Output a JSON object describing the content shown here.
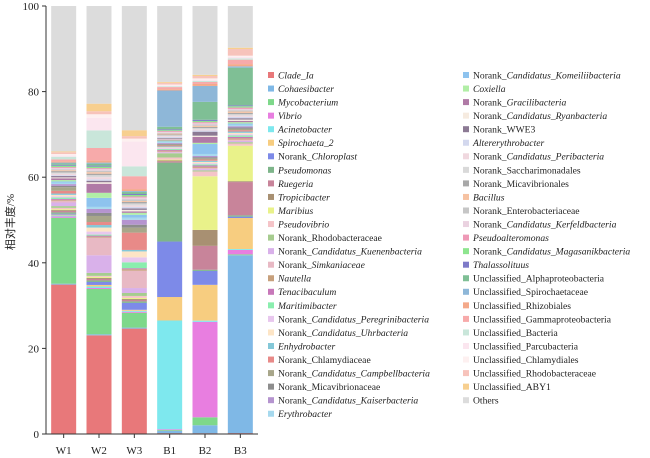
{
  "chart_data": {
    "type": "bar",
    "stacked": true,
    "ylabel": "相对丰度/%",
    "xlabel": "",
    "ylim": [
      0,
      100
    ],
    "yticks": [
      0,
      20,
      40,
      60,
      80,
      100
    ],
    "categories": [
      "W1",
      "W2",
      "W3",
      "B1",
      "B2",
      "B3"
    ],
    "legend_position": "right",
    "series": [
      {
        "name": "Clade_Ia",
        "display": [
          {
            "t": "Clade_Ia",
            "i": true
          }
        ],
        "color": "#e8787a",
        "values": [
          33.3,
          19.6,
          21.3,
          0.2,
          0.2,
          0.2
        ]
      },
      {
        "name": "Cohaesibacter",
        "display": [
          {
            "t": "Cohaesibacter",
            "i": true
          }
        ],
        "color": "#7fb8e6",
        "values": [
          0.2,
          0.2,
          0.2,
          0.5,
          2.0,
          40.1
        ]
      },
      {
        "name": "Mycobacterium",
        "display": [
          {
            "t": "Mycobacterium",
            "i": true
          }
        ],
        "color": "#7ed88a",
        "values": [
          14.7,
          9.0,
          3.0,
          0.2,
          2.0,
          0.2
        ]
      },
      {
        "name": "Vibrio",
        "display": [
          {
            "t": "Vibrio",
            "i": true
          }
        ],
        "color": "#e87ee0",
        "values": [
          0.3,
          0.2,
          0.2,
          0.2,
          24.0,
          1.0
        ]
      },
      {
        "name": "Acinetobacter",
        "display": [
          {
            "t": "Acinetobacter",
            "i": true
          }
        ],
        "color": "#7ee8ee",
        "values": [
          0.2,
          0.3,
          0.2,
          25.5,
          0.3,
          0.2
        ]
      },
      {
        "name": "Spirochaeta_2",
        "display": [
          {
            "t": "Spirochaeta_2",
            "i": true
          }
        ],
        "color": "#f7cd80",
        "values": [
          0.2,
          0.3,
          0.2,
          5.5,
          9.0,
          7.0
        ]
      },
      {
        "name": "Norank_Chloroplast",
        "display": [
          {
            "t": "Norank_",
            "i": false
          },
          {
            "t": "Chloroplast",
            "i": true
          }
        ],
        "color": "#7d8ae8",
        "values": [
          0.2,
          0.6,
          1.4,
          13.0,
          3.5,
          0.3
        ]
      },
      {
        "name": "Pseudomonas",
        "display": [
          {
            "t": "Pseudomonas",
            "i": true
          }
        ],
        "color": "#7eb58a",
        "values": [
          0.3,
          0.3,
          0.3,
          18.5,
          0.3,
          0.3
        ]
      },
      {
        "name": "Ruegeria",
        "display": [
          {
            "t": "Ruegeria",
            "i": true
          }
        ],
        "color": "#c8849a",
        "values": [
          0.3,
          0.3,
          0.3,
          0.3,
          6.0,
          7.5
        ]
      },
      {
        "name": "Tropicibacter",
        "display": [
          {
            "t": "Tropicibacter",
            "i": true
          }
        ],
        "color": "#a89072",
        "values": [
          0.2,
          0.2,
          0.2,
          0.2,
          4.0,
          0.2
        ]
      },
      {
        "name": "Maribius",
        "display": [
          {
            "t": "Maribius",
            "i": true
          }
        ],
        "color": "#e9f28a",
        "values": [
          0.2,
          0.2,
          0.2,
          0.2,
          13.5,
          8.0
        ]
      },
      {
        "name": "Pseudovibrio",
        "display": [
          {
            "t": "Pseudovibrio",
            "i": true
          }
        ],
        "color": "#f5c4c8",
        "values": [
          0.3,
          0.2,
          0.4,
          0.5,
          1.2,
          0.5
        ]
      },
      {
        "name": "Norank_Rhodobacteraceae",
        "display": [
          {
            "t": "Norank_Rhodobacteraceae",
            "i": false
          }
        ],
        "color": "#a6cc8f",
        "values": [
          0.4,
          0.6,
          0.6,
          1.0,
          0.3,
          0.3
        ]
      },
      {
        "name": "Norank_Candidatus_Kuenenbacteria",
        "display": [
          {
            "t": "Norank_",
            "i": false
          },
          {
            "t": "Candidatus_Kuenenbacteria",
            "i": true
          }
        ],
        "color": "#d9b1ea",
        "values": [
          0.8,
          3.5,
          1.0,
          0.2,
          0.3,
          0.3
        ]
      },
      {
        "name": "Norank_Simkaniaceae",
        "display": [
          {
            "t": "Norank_",
            "i": false
          },
          {
            "t": "Simkaniaceae",
            "i": true
          }
        ],
        "color": "#e8b9c4",
        "values": [
          0.4,
          3.5,
          3.5,
          0.2,
          0.3,
          0.3
        ]
      },
      {
        "name": "Nautella",
        "display": [
          {
            "t": "Nautella",
            "i": true
          }
        ],
        "color": "#c7a07c",
        "values": [
          0.2,
          0.2,
          0.3,
          0.2,
          0.3,
          0.3
        ]
      },
      {
        "name": "Tenacibaculum",
        "display": [
          {
            "t": "Tenacibaculum",
            "i": true
          }
        ],
        "color": "#c778b9",
        "values": [
          0.2,
          0.2,
          0.2,
          0.2,
          0.3,
          0.3
        ]
      },
      {
        "name": "Maritimibacter",
        "display": [
          {
            "t": "Maritimibacter",
            "i": true
          }
        ],
        "color": "#8aeeae",
        "values": [
          0.3,
          0.2,
          1.2,
          0.2,
          0.3,
          0.3
        ]
      },
      {
        "name": "Norank_Candidatus_Peregrinibacteria",
        "display": [
          {
            "t": "Norank_",
            "i": false
          },
          {
            "t": "Candidatus_Peregrinibacteria",
            "i": true
          }
        ],
        "color": "#e8c7ee",
        "values": [
          0.3,
          0.6,
          1.0,
          0.2,
          0.3,
          0.3
        ]
      },
      {
        "name": "Norank_Candidatus_Uhrbacteria",
        "display": [
          {
            "t": "Norank_",
            "i": false
          },
          {
            "t": "Candidatus_Uhrbacteria",
            "i": true
          }
        ],
        "color": "#fde5c6",
        "values": [
          0.3,
          0.8,
          1.2,
          0.2,
          0.3,
          0.3
        ]
      },
      {
        "name": "Enhydrobacter",
        "display": [
          {
            "t": "Enhydrobacter",
            "i": true
          }
        ],
        "color": "#84c8d8",
        "values": [
          0.3,
          0.5,
          0.3,
          0.2,
          0.3,
          0.3
        ]
      },
      {
        "name": "Norank_Chlamydiaceae",
        "display": [
          {
            "t": "Norank_Chlamydiaceae",
            "i": false
          }
        ],
        "color": "#e88a88",
        "values": [
          0.6,
          0.6,
          3.5,
          0.2,
          0.3,
          0.3
        ]
      },
      {
        "name": "Norank_Candidatus_Campbellbacteria",
        "display": [
          {
            "t": "Norank_",
            "i": false
          },
          {
            "t": "Candidatus_Campbellbacteria",
            "i": true
          }
        ],
        "color": "#a8a68a",
        "values": [
          0.8,
          1.2,
          1.0,
          0.2,
          0.3,
          0.3
        ]
      },
      {
        "name": "Norank_Micavibrionaceae",
        "display": [
          {
            "t": "Norank_Micavibrionaceae",
            "i": false
          }
        ],
        "color": "#8d8d8d",
        "values": [
          0.3,
          0.6,
          0.6,
          0.2,
          0.3,
          0.3
        ]
      },
      {
        "name": "Norank_Candidatus_Kaiserbacteria",
        "display": [
          {
            "t": "Norank_",
            "i": false
          },
          {
            "t": "Candidatus_Kaiserbacteria",
            "i": true
          }
        ],
        "color": "#b594cf",
        "values": [
          0.4,
          0.8,
          1.0,
          0.2,
          0.3,
          0.3
        ]
      },
      {
        "name": "Erythrobacter",
        "display": [
          {
            "t": "Erythrobacter",
            "i": true
          }
        ],
        "color": "#a6d9ee",
        "values": [
          0.3,
          0.4,
          0.4,
          0.2,
          0.5,
          0.3
        ]
      },
      {
        "name": "Norank_Candidatus_Komeiliibacteria",
        "display": [
          {
            "t": "Norank_",
            "i": false
          },
          {
            "t": "Candidatus_Komeiliibacteria",
            "i": true
          }
        ],
        "color": "#8ec3ee",
        "values": [
          0.3,
          1.8,
          0.6,
          0.2,
          2.5,
          0.3
        ]
      },
      {
        "name": "Coxiella",
        "display": [
          {
            "t": "Coxiella",
            "i": true
          }
        ],
        "color": "#b1eea6",
        "values": [
          0.3,
          1.0,
          0.4,
          0.2,
          0.3,
          0.3
        ]
      },
      {
        "name": "Norank_Gracilibacteria",
        "display": [
          {
            "t": "Norank_",
            "i": false
          },
          {
            "t": "Gracilibacteria",
            "i": true
          }
        ],
        "color": "#b07aa6",
        "values": [
          0.4,
          1.8,
          0.3,
          0.2,
          1.5,
          0.3
        ]
      },
      {
        "name": "Norank_Candidatus_Ryanbacteria",
        "display": [
          {
            "t": "Norank_",
            "i": false
          },
          {
            "t": "Candidatus_Ryanbacteria",
            "i": true
          }
        ],
        "color": "#f6ebe0",
        "values": [
          0.2,
          0.3,
          0.3,
          0.2,
          0.3,
          0.3
        ]
      },
      {
        "name": "Norank_WWE3",
        "display": [
          {
            "t": "Norank_WWE3",
            "i": false
          }
        ],
        "color": "#8c7a94",
        "values": [
          0.3,
          0.3,
          0.3,
          0.2,
          1.0,
          0.3
        ]
      },
      {
        "name": "Altererythrobacter",
        "display": [
          {
            "t": "Altererythrobacter",
            "i": true
          }
        ],
        "color": "#d3d8ee",
        "values": [
          0.2,
          0.3,
          0.3,
          0.2,
          0.3,
          0.3
        ]
      },
      {
        "name": "Norank_Candidatus_Peribacteria",
        "display": [
          {
            "t": "Norank_",
            "i": false
          },
          {
            "t": "Candidatus_Peribacteria",
            "i": true
          }
        ],
        "color": "#f0d8df",
        "values": [
          0.3,
          0.4,
          0.3,
          0.2,
          0.3,
          0.3
        ]
      },
      {
        "name": "Norank_Saccharimonadales",
        "display": [
          {
            "t": "Norank_Saccharimonadales",
            "i": false
          }
        ],
        "color": "#d9d9d9",
        "values": [
          0.3,
          0.4,
          0.4,
          0.2,
          0.3,
          0.3
        ]
      },
      {
        "name": "Norank_Micavibrionales",
        "display": [
          {
            "t": "Norank_Micavibrionales",
            "i": false
          }
        ],
        "color": "#a8a8a8",
        "values": [
          0.3,
          0.3,
          0.3,
          0.2,
          0.3,
          0.3
        ]
      },
      {
        "name": "Bacillus",
        "display": [
          {
            "t": "Bacillus",
            "i": true
          }
        ],
        "color": "#f6c2a2",
        "values": [
          0.2,
          0.3,
          0.2,
          0.2,
          0.3,
          0.3
        ]
      },
      {
        "name": "Norank_Enterobacteriaceae",
        "display": [
          {
            "t": "Norank_Enterobacteriaceae",
            "i": false
          }
        ],
        "color": "#c6c6c6",
        "values": [
          0.2,
          0.3,
          0.3,
          0.2,
          0.3,
          0.3
        ]
      },
      {
        "name": "Norank_Candidatus_Kerfeldbacteria",
        "display": [
          {
            "t": "Norank_",
            "i": false
          },
          {
            "t": "Candidatus_Kerfeldbacteria",
            "i": true
          }
        ],
        "color": "#ead2e0",
        "values": [
          0.3,
          0.3,
          0.4,
          0.2,
          0.3,
          0.3
        ]
      },
      {
        "name": "Pseudoalteromonas",
        "display": [
          {
            "t": "Pseudoalteromonas",
            "i": true
          }
        ],
        "color": "#ee99b6",
        "values": [
          0.2,
          0.2,
          0.2,
          0.2,
          0.3,
          0.3
        ]
      },
      {
        "name": "Norank_Candidatus_Magasanikbacteria",
        "display": [
          {
            "t": "Norank_",
            "i": false
          },
          {
            "t": "Candidatus_Magasanikbacteria",
            "i": true
          }
        ],
        "color": "#8ee58f",
        "values": [
          0.3,
          0.3,
          0.3,
          0.2,
          0.3,
          0.3
        ]
      },
      {
        "name": "Thalassolituus",
        "display": [
          {
            "t": "Thalassolituus",
            "i": true
          }
        ],
        "color": "#7e7ac8",
        "values": [
          0.2,
          0.2,
          0.2,
          0.2,
          0.3,
          0.2
        ]
      },
      {
        "name": "Unclassified_Alphaproteobacteria",
        "display": [
          {
            "t": "Unclassified_Alphaproteobacteria",
            "i": false
          }
        ],
        "color": "#7fbf95",
        "values": [
          0.3,
          0.4,
          0.4,
          0.6,
          4.5,
          8.5
        ]
      },
      {
        "name": "Unclassified_Spirochaetaceae",
        "display": [
          {
            "t": "Unclassified_Spirochaetaceae",
            "i": false
          }
        ],
        "color": "#8eb7d8",
        "values": [
          0.2,
          0.2,
          0.2,
          8.5,
          4.0,
          0.3
        ]
      },
      {
        "name": "Unclassified_Rhizobiales",
        "display": [
          {
            "t": "Unclassified_Rhizobiales",
            "i": false
          }
        ],
        "color": "#f4a98a",
        "values": [
          0.3,
          0.4,
          0.4,
          0.3,
          0.5,
          0.5
        ]
      },
      {
        "name": "Unclassified_Gammaproteobacteria",
        "display": [
          {
            "t": "Unclassified_Gammaproteobacteria",
            "i": false
          }
        ],
        "color": "#f7aaaa",
        "values": [
          0.4,
          2.5,
          2.6,
          0.5,
          0.5,
          1.0
        ]
      },
      {
        "name": "Unclassified_Bacteria",
        "display": [
          {
            "t": "Unclassified_Bacteria",
            "i": false
          }
        ],
        "color": "#c9e6da",
        "values": [
          0.6,
          3.5,
          2.0,
          0.2,
          0.3,
          0.3
        ]
      },
      {
        "name": "Unclassified_Parcubacteria",
        "display": [
          {
            "t": "Unclassified_Parcubacteria",
            "i": false
          }
        ],
        "color": "#fbe6ef",
        "values": [
          0.3,
          2.5,
          5.0,
          0.2,
          0.3,
          0.3
        ]
      },
      {
        "name": "Unclassified_Chlamydiales",
        "display": [
          {
            "t": "Unclassified_Chlamydiales",
            "i": false
          }
        ],
        "color": "#fdf0f0",
        "values": [
          0.3,
          0.7,
          0.6,
          0.2,
          0.3,
          0.3
        ]
      },
      {
        "name": "Unclassified_Rhodobacteraceae",
        "display": [
          {
            "t": "Unclassified_Rhodobacteraceae",
            "i": false
          }
        ],
        "color": "#f7c3bb",
        "values": [
          0.4,
          0.6,
          0.5,
          0.4,
          0.6,
          1.5
        ]
      },
      {
        "name": "Unclassified_ABY1",
        "display": [
          {
            "t": "Unclassified_ABY1",
            "i": false
          }
        ],
        "color": "#f7cf8f",
        "values": [
          0.2,
          1.5,
          1.2,
          0.2,
          0.3,
          0.3
        ]
      },
      {
        "name": "Others",
        "display": [
          {
            "t": "Others",
            "i": false
          }
        ],
        "color": "#dcdcdc",
        "values": [
          32.4,
          19.4,
          25.1,
          17.8,
          17.3,
          9.4
        ]
      }
    ]
  }
}
